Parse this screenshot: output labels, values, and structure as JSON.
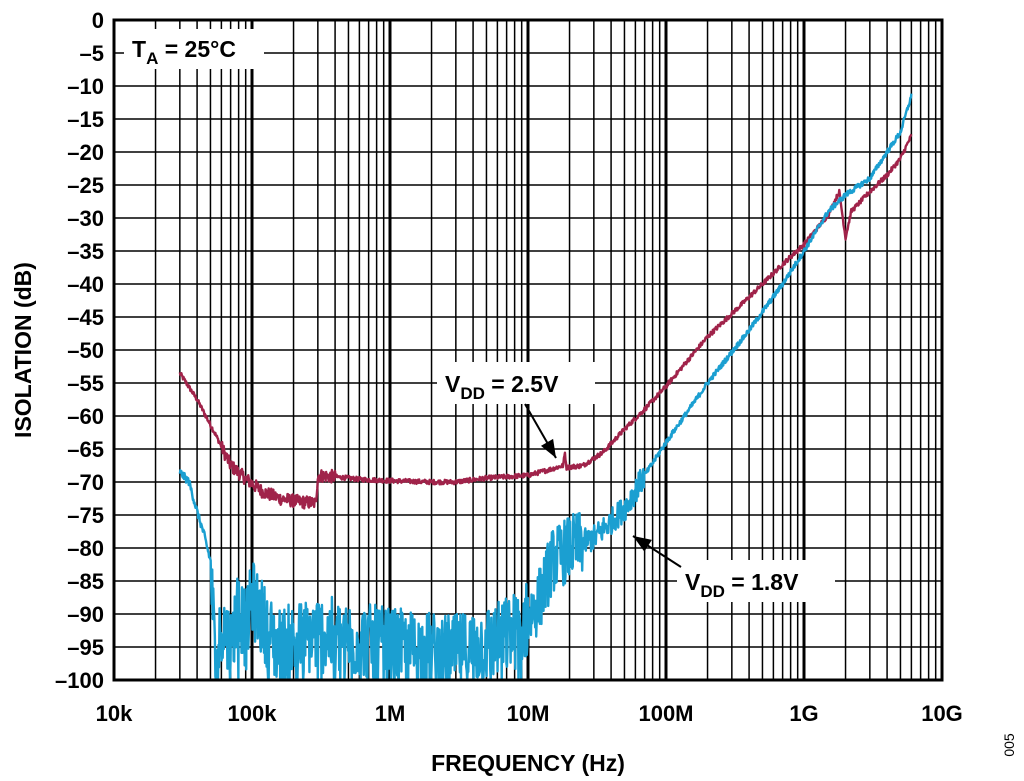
{
  "chart_data": {
    "type": "line",
    "xlabel": "FREQUENCY (Hz)",
    "ylabel": "ISOLATION (dB)",
    "x_scale": "log",
    "xlim": [
      10000,
      10000000000
    ],
    "ylim": [
      -100,
      0
    ],
    "x_ticks": [
      10000,
      100000,
      1000000,
      10000000,
      100000000,
      1000000000,
      10000000000
    ],
    "x_tick_labels": [
      "10k",
      "100k",
      "1M",
      "10M",
      "100M",
      "1G",
      "10G"
    ],
    "y_ticks": [
      0,
      -5,
      -10,
      -15,
      -20,
      -25,
      -30,
      -35,
      -40,
      -45,
      -50,
      -55,
      -60,
      -65,
      -70,
      -75,
      -80,
      -85,
      -90,
      -95,
      -100
    ],
    "y_tick_labels": [
      "0",
      "–5",
      "–10",
      "–15",
      "–20",
      "–25",
      "–30",
      "–35",
      "–40",
      "–45",
      "–50",
      "–55",
      "–60",
      "–65",
      "–70",
      "–75",
      "–80",
      "–85",
      "–90",
      "–95",
      "–100"
    ],
    "grid": true,
    "condition_label": {
      "main": "T",
      "sub": "A",
      "rest": " = 25°C"
    },
    "figure_id": "005",
    "series": [
      {
        "label": {
          "main": "V",
          "sub": "DD",
          "rest": " = 2.5V"
        },
        "color": "#A0234A",
        "points": [
          [
            30000,
            -53.5
          ],
          [
            40000,
            -57.5
          ],
          [
            55000,
            -63
          ],
          [
            70000,
            -67.5
          ],
          [
            90000,
            -69.5
          ],
          [
            120000,
            -71.5
          ],
          [
            160000,
            -72.5
          ],
          [
            220000,
            -73
          ],
          [
            290000,
            -73.2
          ],
          [
            300000,
            -69
          ],
          [
            400000,
            -69.2
          ],
          [
            600000,
            -69.6
          ],
          [
            1000000,
            -69.8
          ],
          [
            2000000,
            -70
          ],
          [
            3000000,
            -70
          ],
          [
            5000000,
            -69.4
          ],
          [
            10000000,
            -69
          ],
          [
            15000000,
            -68
          ],
          [
            18000000,
            -67.5
          ],
          [
            18500000,
            -65.5
          ],
          [
            19000000,
            -67.8
          ],
          [
            25000000,
            -67.5
          ],
          [
            35000000,
            -65.5
          ],
          [
            50000000,
            -62
          ],
          [
            70000000,
            -59
          ],
          [
            100000000,
            -55.5
          ],
          [
            200000000,
            -48
          ],
          [
            400000000,
            -42
          ],
          [
            700000000,
            -37
          ],
          [
            1000000000,
            -34
          ],
          [
            1500000000,
            -29.5
          ],
          [
            1800000000,
            -26
          ],
          [
            2000000000,
            -33
          ],
          [
            2200000000,
            -29
          ],
          [
            3000000000,
            -26
          ],
          [
            4000000000,
            -23.5
          ],
          [
            5000000000,
            -21
          ],
          [
            6000000000,
            -17.5
          ]
        ]
      },
      {
        "label": {
          "main": "V",
          "sub": "DD",
          "rest": " = 1.8V"
        },
        "color": "#1B9FD1",
        "points": [
          [
            30000,
            -68.5
          ],
          [
            35000,
            -70
          ],
          [
            40000,
            -74.5
          ],
          [
            45000,
            -78
          ],
          [
            50000,
            -82
          ],
          [
            55000,
            -100
          ],
          [
            60000,
            -91
          ],
          [
            70000,
            -95
          ],
          [
            80000,
            -88
          ],
          [
            90000,
            -93
          ],
          [
            100000,
            -87.5
          ],
          [
            150000,
            -95
          ],
          [
            300000,
            -93
          ],
          [
            1000000,
            -95
          ],
          [
            3000000,
            -96
          ],
          [
            6000000,
            -94
          ],
          [
            9000000,
            -92
          ],
          [
            12000000,
            -88
          ],
          [
            15000000,
            -82
          ],
          [
            20000000,
            -80
          ],
          [
            30000000,
            -78.5
          ],
          [
            50000000,
            -74
          ],
          [
            70000000,
            -69
          ],
          [
            100000000,
            -64
          ],
          [
            200000000,
            -55
          ],
          [
            400000000,
            -47
          ],
          [
            700000000,
            -40
          ],
          [
            1000000000,
            -35
          ],
          [
            1500000000,
            -29
          ],
          [
            2000000000,
            -26.5
          ],
          [
            3000000000,
            -24
          ],
          [
            4000000000,
            -20
          ],
          [
            5000000000,
            -17
          ],
          [
            6000000000,
            -11.5
          ]
        ]
      }
    ]
  }
}
